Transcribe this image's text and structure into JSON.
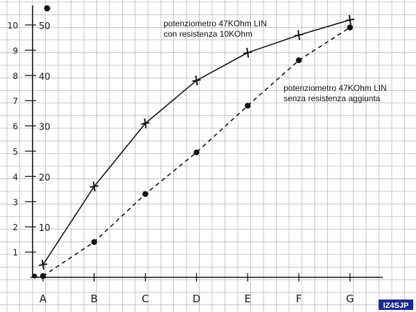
{
  "chart_data": {
    "type": "line",
    "categories": [
      "A",
      "B",
      "C",
      "D",
      "E",
      "F",
      "G"
    ],
    "y_left_ticks": [
      "1",
      "2",
      "3",
      "4",
      "5",
      "6",
      "7",
      "8",
      "9",
      "10"
    ],
    "y_right_ticks": [
      "10",
      "20",
      "30",
      "40",
      "50"
    ],
    "ylim": [
      0,
      10.6
    ],
    "grid": true,
    "series": [
      {
        "name": "potenziometro 47KOhm LIN\ncon resistenza 10KOhm",
        "marker": "+",
        "line_style": "solid",
        "color": "#111111",
        "values": [
          0.5,
          3.6,
          6.1,
          7.8,
          8.9,
          9.6,
          10.2
        ]
      },
      {
        "name": "potenziometro 47KOhm LIN\nsenza resistenza aggiunta",
        "marker": "dot",
        "line_style": "dashed",
        "color": "#111111",
        "values": [
          0.05,
          1.4,
          3.3,
          4.95,
          6.8,
          8.6,
          9.9
        ]
      }
    ],
    "origin_point": 0.05,
    "top_marker_right_axis": 50
  },
  "labels": {
    "series1_line1": "potenziometro 47KOhm LIN",
    "series1_line2": "con resistenza 10KOhm",
    "series2_line1": "potenziometro 47KOhm LIN",
    "series2_line2": "senza resistenza aggiunta",
    "signature": "IZ4SJP"
  },
  "colors": {
    "grid": "#b8b8b8",
    "ink": "#111111",
    "signature_bg": "#1c2a8c",
    "signature_text": "#ffffff"
  }
}
